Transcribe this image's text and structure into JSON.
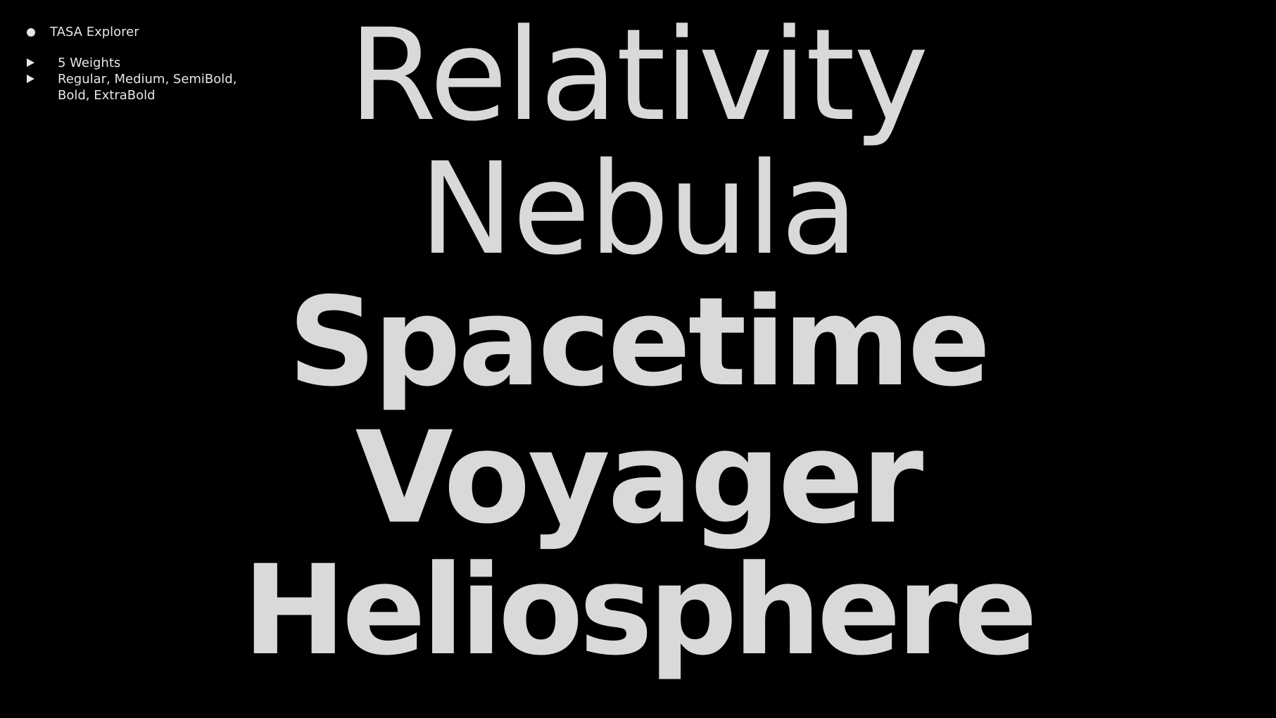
{
  "info": {
    "title": "TASA Explorer",
    "weights_count": "5 Weights",
    "weights_line1": "Regular, Medium, SemiBold,",
    "weights_line2": "Bold, ExtraBold"
  },
  "specimen": {
    "words": [
      "Relativity",
      "Nebula",
      "Spacetime",
      "Voyager",
      "Heliosphere"
    ]
  },
  "colors": {
    "background": "#000000",
    "text": "#d9d9d9"
  }
}
